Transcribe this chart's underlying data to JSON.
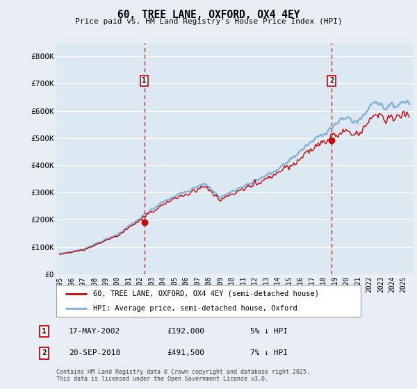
{
  "title": "60, TREE LANE, OXFORD, OX4 4EY",
  "subtitle": "Price paid vs. HM Land Registry's House Price Index (HPI)",
  "ylabel_ticks": [
    "£0",
    "£100K",
    "£200K",
    "£300K",
    "£400K",
    "£500K",
    "£600K",
    "£700K",
    "£800K"
  ],
  "ytick_vals": [
    0,
    100000,
    200000,
    300000,
    400000,
    500000,
    600000,
    700000,
    800000
  ],
  "ylim": [
    0,
    850000
  ],
  "xlim_start": 1994.7,
  "xlim_end": 2025.8,
  "bg_color": "#e8eef4",
  "plot_bg_color": "#dce8f2",
  "grid_color": "#ffffff",
  "red_line_color": "#cc0000",
  "blue_line_color": "#7aafd4",
  "marker1_year": 2002.37,
  "marker1_value": 192000,
  "marker1_label": "1",
  "marker1_date": "17-MAY-2002",
  "marker1_price": "£192,000",
  "marker1_hpi": "5% ↓ HPI",
  "marker2_year": 2018.72,
  "marker2_value": 491500,
  "marker2_label": "2",
  "marker2_date": "20-SEP-2018",
  "marker2_price": "£491,500",
  "marker2_hpi": "7% ↓ HPI",
  "legend_line1": "60, TREE LANE, OXFORD, OX4 4EY (semi-detached house)",
  "legend_line2": "HPI: Average price, semi-detached house, Oxford",
  "footer": "Contains HM Land Registry data © Crown copyright and database right 2025.\nThis data is licensed under the Open Government Licence v3.0.",
  "xticks": [
    1995,
    1996,
    1997,
    1998,
    1999,
    2000,
    2001,
    2002,
    2003,
    2004,
    2005,
    2006,
    2007,
    2008,
    2009,
    2010,
    2011,
    2012,
    2013,
    2014,
    2015,
    2016,
    2017,
    2018,
    2019,
    2020,
    2021,
    2022,
    2023,
    2024,
    2025
  ]
}
